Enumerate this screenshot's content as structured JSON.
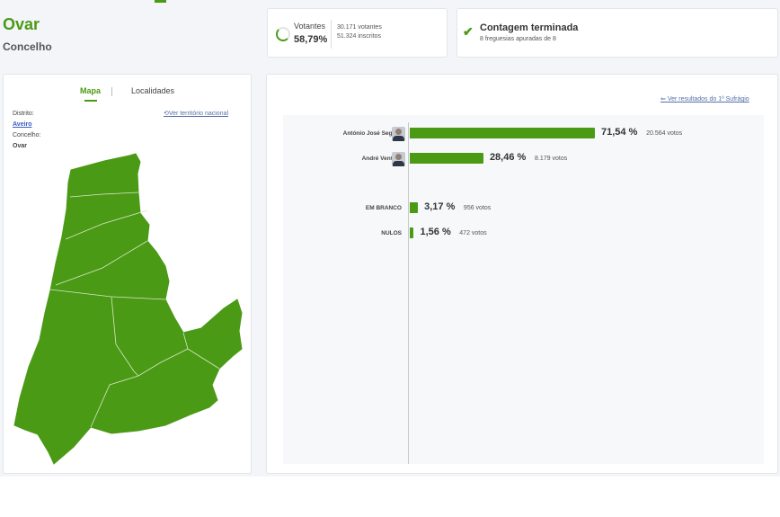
{
  "header": {
    "title": "Ovar",
    "subtitle": "Concelho"
  },
  "votantes": {
    "label": "Votantes",
    "percentage": "58,79%",
    "votantes_text": "30.171 votantes",
    "inscritos_text": "51.324 inscritos",
    "progress": 0.5879
  },
  "contagem": {
    "title": "Contagem terminada",
    "subtitle": "8 freguesias apuradas de 8"
  },
  "map_panel": {
    "tabs": [
      "Mapa",
      "Localidades"
    ],
    "active_tab": "Mapa",
    "territory_link": "Ver território nacional",
    "distrito_label": "Distrito:",
    "distrito_value": "Aveiro",
    "concelho_label": "Concelho:",
    "concelho_value": "Ovar"
  },
  "results": {
    "back_link": "Ver resultados do 1º Sufrágio",
    "rows": [
      {
        "label": "António José Seguro",
        "percent": 71.54,
        "percent_text": "71,54 %",
        "votes_text": "20.564 votos",
        "has_avatar": true
      },
      {
        "label": "André Ventura",
        "percent": 28.46,
        "percent_text": "28,46 %",
        "votes_text": "8.179 votos",
        "has_avatar": true
      },
      {
        "label": "EM BRANCO",
        "percent": 3.17,
        "percent_text": "3,17 %",
        "votes_text": "956 votos",
        "has_avatar": false
      },
      {
        "label": "NULOS",
        "percent": 1.56,
        "percent_text": "1,56 %",
        "votes_text": "472 votos",
        "has_avatar": false
      }
    ]
  },
  "colors": {
    "accent": "#4a9a16",
    "map_fill": "#4a9a16",
    "link": "#5670a8"
  },
  "icons": {
    "progress": "progress-ring-icon",
    "check": "check-icon",
    "refresh": "refresh-icon",
    "back": "arrow-left-icon"
  }
}
